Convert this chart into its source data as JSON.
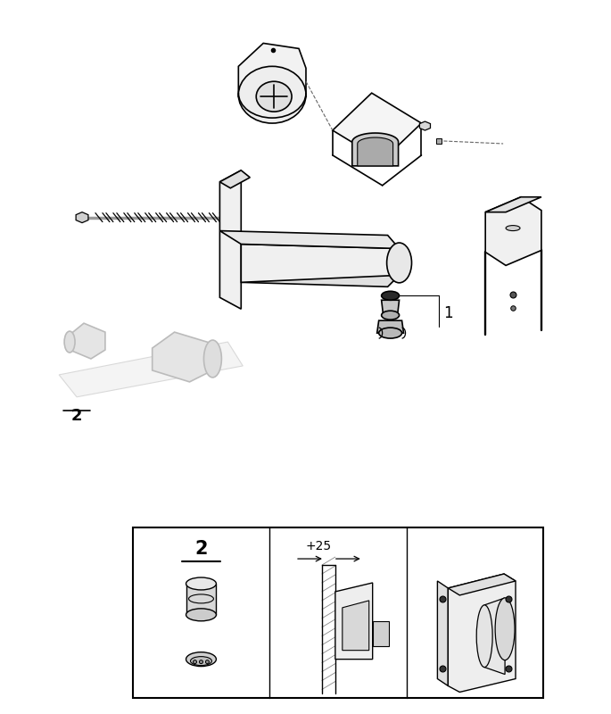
{
  "bg_color": "#ffffff",
  "line_color": "#000000",
  "ghost_color": "#bbbbbb",
  "dark_color": "#333333",
  "figure_width": 6.85,
  "figure_height": 8.0,
  "dpi": 100,
  "label_1": "1",
  "label_2": "2",
  "label_25": "+25"
}
